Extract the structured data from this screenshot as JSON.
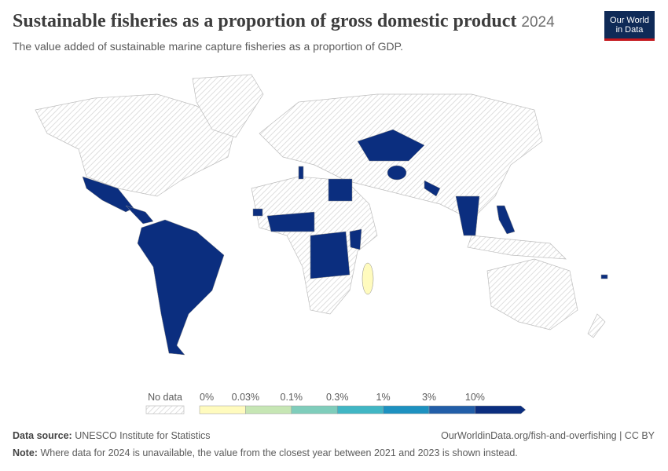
{
  "header": {
    "title": "Sustainable fisheries as a proportion of gross domestic product",
    "year": "2024",
    "subtitle": "The value added of sustainable marine capture fisheries as a proportion of GDP.",
    "logo": [
      "Our World",
      "in Data"
    ]
  },
  "legend": {
    "no_data": "No data",
    "labels": [
      "0%",
      "0.03%",
      "0.1%",
      "0.3%",
      "1%",
      "3%",
      "10%"
    ],
    "colors": [
      "#fffbbe",
      "#c6e6b4",
      "#7fcdbb",
      "#41b6c4",
      "#1d91c0",
      "#225ea8",
      "#0b2e7f"
    ]
  },
  "footer": {
    "source_label": "Data source:",
    "source": "UNESCO Institute for Statistics",
    "url": "OurWorldinData.org/fish-and-overfishing | CC BY",
    "note_label": "Note:",
    "note": "Where data for 2024 is unavailable, the value from the closest year between 2021 and 2023 is shown instead."
  }
}
